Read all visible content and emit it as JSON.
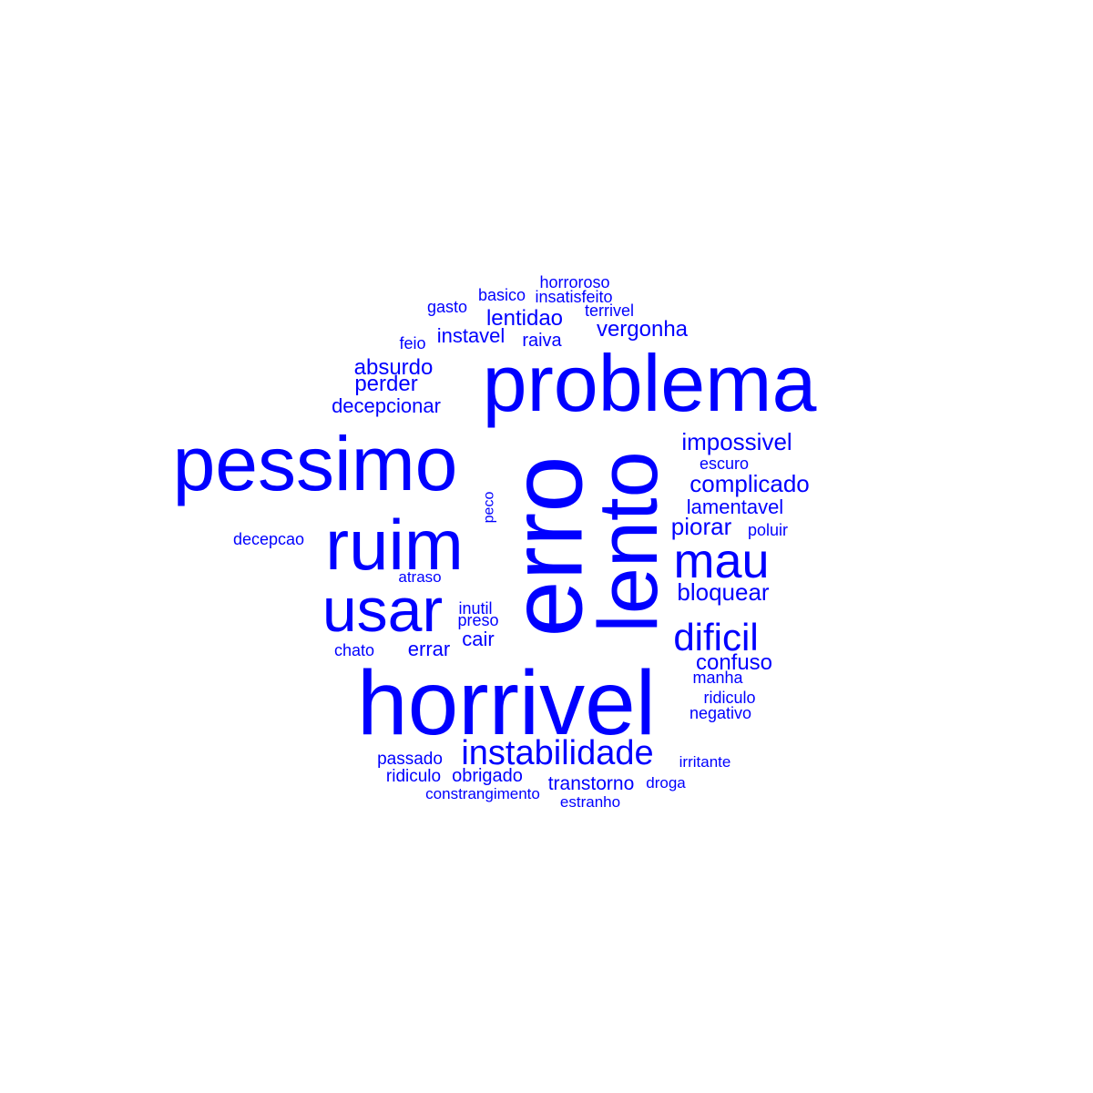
{
  "word_color": "#0000ff",
  "background_color": "#ffffff",
  "words": [
    {
      "text": "horroroso",
      "orientation": "horizontal"
    },
    {
      "text": "basico",
      "orientation": "horizontal"
    },
    {
      "text": "insatisfeito",
      "orientation": "horizontal"
    },
    {
      "text": "gasto",
      "orientation": "horizontal"
    },
    {
      "text": "terrivel",
      "orientation": "horizontal"
    },
    {
      "text": "lentidao",
      "orientation": "horizontal"
    },
    {
      "text": "vergonha",
      "orientation": "horizontal"
    },
    {
      "text": "instavel",
      "orientation": "horizontal"
    },
    {
      "text": "raiva",
      "orientation": "horizontal"
    },
    {
      "text": "feio",
      "orientation": "horizontal"
    },
    {
      "text": "absurdo",
      "orientation": "horizontal"
    },
    {
      "text": "problema",
      "orientation": "horizontal"
    },
    {
      "text": "perder",
      "orientation": "horizontal"
    },
    {
      "text": "decepcionar",
      "orientation": "horizontal"
    },
    {
      "text": "impossivel",
      "orientation": "horizontal"
    },
    {
      "text": "pessimo",
      "orientation": "horizontal"
    },
    {
      "text": "escuro",
      "orientation": "horizontal"
    },
    {
      "text": "complicado",
      "orientation": "horizontal"
    },
    {
      "text": "peco",
      "orientation": "vertical"
    },
    {
      "text": "erro",
      "orientation": "vertical"
    },
    {
      "text": "lento",
      "orientation": "vertical"
    },
    {
      "text": "lamentavel",
      "orientation": "horizontal"
    },
    {
      "text": "piorar",
      "orientation": "horizontal"
    },
    {
      "text": "poluir",
      "orientation": "horizontal"
    },
    {
      "text": "ruim",
      "orientation": "horizontal"
    },
    {
      "text": "decepcao",
      "orientation": "horizontal"
    },
    {
      "text": "mau",
      "orientation": "horizontal"
    },
    {
      "text": "atraso",
      "orientation": "horizontal"
    },
    {
      "text": "bloquear",
      "orientation": "horizontal"
    },
    {
      "text": "usar",
      "orientation": "horizontal"
    },
    {
      "text": "inutil",
      "orientation": "horizontal"
    },
    {
      "text": "preso",
      "orientation": "horizontal"
    },
    {
      "text": "dificil",
      "orientation": "horizontal"
    },
    {
      "text": "cair",
      "orientation": "horizontal"
    },
    {
      "text": "chato",
      "orientation": "horizontal"
    },
    {
      "text": "errar",
      "orientation": "horizontal"
    },
    {
      "text": "confuso",
      "orientation": "horizontal"
    },
    {
      "text": "manha",
      "orientation": "horizontal"
    },
    {
      "text": "horrivel",
      "orientation": "horizontal"
    },
    {
      "text": "ridiculo",
      "orientation": "horizontal"
    },
    {
      "text": "negativo",
      "orientation": "horizontal"
    },
    {
      "text": "instabilidade",
      "orientation": "horizontal"
    },
    {
      "text": "passado",
      "orientation": "horizontal"
    },
    {
      "text": "irritante",
      "orientation": "horizontal"
    },
    {
      "text": "ridiculo",
      "orientation": "horizontal"
    },
    {
      "text": "obrigado",
      "orientation": "horizontal"
    },
    {
      "text": "transtorno",
      "orientation": "horizontal"
    },
    {
      "text": "droga",
      "orientation": "horizontal"
    },
    {
      "text": "constrangimento",
      "orientation": "horizontal"
    },
    {
      "text": "estranho",
      "orientation": "horizontal"
    }
  ]
}
